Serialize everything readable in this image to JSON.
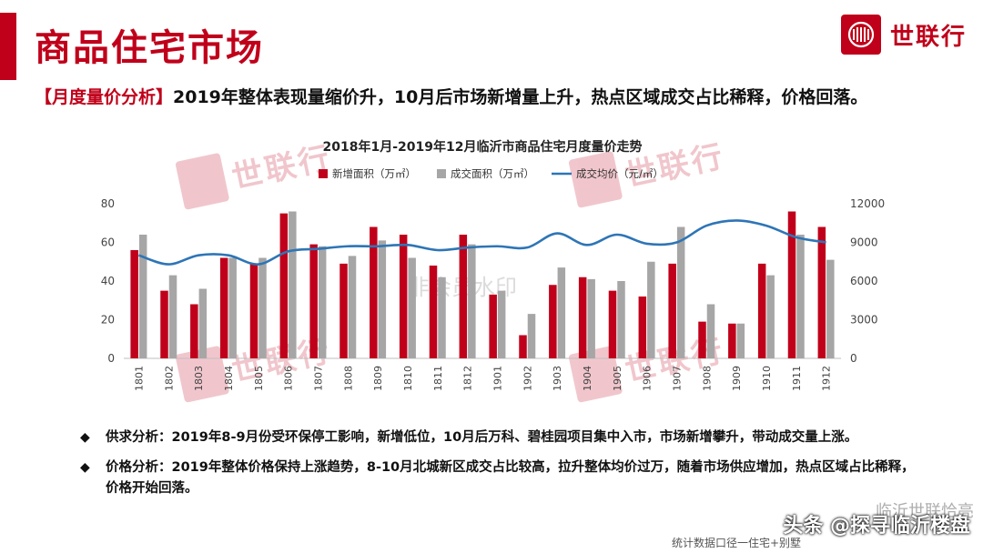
{
  "header": {
    "title": "商品住宅市场",
    "logo_text": "世联行"
  },
  "subtitle": {
    "tag": "【月度量价分析】",
    "text": "2019年整体表现量缩价升，10月后市场新增量上升，热点区域成交占比稀释，价格回落。"
  },
  "colors": {
    "brand": "#c0001a",
    "new_area": "#c0001a",
    "deal_area": "#a6a6a6",
    "avg_price": "#2e75b6"
  },
  "chart_data": {
    "type": "bar",
    "title": "2018年1月-2019年12月临沂市商品住宅月度量价走势",
    "categories": [
      "1801",
      "1802",
      "1803",
      "1804",
      "1805",
      "1806",
      "1807",
      "1808",
      "1809",
      "1810",
      "1811",
      "1812",
      "1901",
      "1902",
      "1903",
      "1904",
      "1905",
      "1906",
      "1907",
      "1908",
      "1909",
      "1910",
      "1911",
      "1912"
    ],
    "series": [
      {
        "name": "新增面积（万㎡）",
        "kind": "bar",
        "axis": "left",
        "values": [
          56,
          35,
          28,
          52,
          49,
          75,
          59,
          49,
          68,
          64,
          48,
          64,
          33,
          12,
          38,
          42,
          35,
          32,
          49,
          19,
          18,
          49,
          76,
          68
        ]
      },
      {
        "name": "成交面积（万㎡）",
        "kind": "bar",
        "axis": "left",
        "values": [
          64,
          43,
          36,
          52,
          52,
          76,
          58,
          53,
          61,
          52,
          42,
          59,
          35,
          23,
          47,
          41,
          40,
          50,
          68,
          28,
          18,
          43,
          64,
          51
        ]
      },
      {
        "name": "成交均价（元/㎡）",
        "kind": "line",
        "axis": "right",
        "values": [
          8000,
          7300,
          8000,
          8000,
          7300,
          8300,
          8500,
          8700,
          8700,
          8800,
          8400,
          8600,
          8700,
          8600,
          9700,
          8800,
          9600,
          8900,
          9000,
          10300,
          10700,
          10300,
          9400,
          9000
        ]
      }
    ],
    "ylim_left": [
      0,
      80
    ],
    "yticks_left": [
      0,
      20,
      40,
      60,
      80
    ],
    "ylim_right": [
      0,
      12000
    ],
    "yticks_right": [
      0,
      3000,
      6000,
      9000,
      12000
    ],
    "legend_position": "top",
    "grid": false
  },
  "watermarks": {
    "brand_text": "世联行",
    "faint_text": "非会员水印"
  },
  "bullets": [
    "供求分析：2019年8-9月份受环保停工影响，新增低位，10月后万科、碧桂园项目集中入市，市场新增攀升，带动成交量上涨。",
    "价格分析：2019年整体价格保持上涨趋势，8-10月北城新区成交占比较高，拉升整体均价过万，随着市场供应增加，热点区域占比稀释，价格开始回落。"
  ],
  "bullet_marker": "◆",
  "footer": {
    "signature": "临沂世联恰亮",
    "credit": "头条 @探寻临沂楼盘",
    "note": "统计数据口径一住宅+别墅"
  }
}
